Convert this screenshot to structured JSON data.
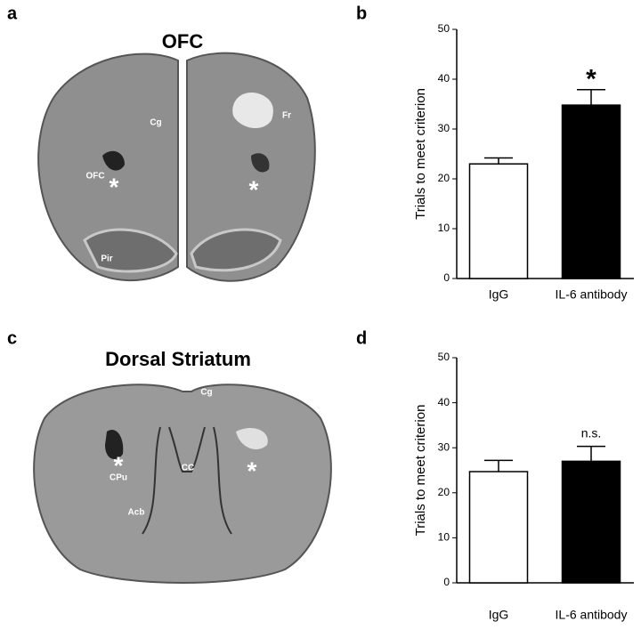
{
  "panels": [
    {
      "letter": "a",
      "title": "OFC",
      "labels": [
        "Cg",
        "Fr",
        "OFC",
        "Pir"
      ],
      "marker": "*"
    },
    {
      "letter": "b"
    },
    {
      "letter": "c",
      "title": "Dorsal Striatum",
      "labels": [
        "Cg",
        "CC",
        "CPu",
        "Acb"
      ],
      "marker": "*"
    },
    {
      "letter": "d"
    }
  ],
  "chart_data": [
    {
      "type": "bar",
      "y_label": "Trials to meet criterion",
      "categories": [
        "IgG",
        "IL-6 antibody"
      ],
      "values": [
        23,
        34.8
      ],
      "errors": [
        1.2,
        3.1
      ],
      "colors": [
        "#ffffff",
        "#000000"
      ],
      "ylim": [
        0,
        50
      ],
      "yticks": [
        0,
        10,
        20,
        30,
        40,
        50
      ],
      "annotation": "*"
    },
    {
      "type": "bar",
      "y_label": "Trials to meet criterion",
      "categories": [
        "IgG",
        "IL-6 antibody"
      ],
      "values": [
        24.7,
        27
      ],
      "errors": [
        2.5,
        3.3
      ],
      "colors": [
        "#ffffff",
        "#000000"
      ],
      "ylim": [
        0,
        50
      ],
      "yticks": [
        0,
        10,
        20,
        30,
        40,
        50
      ],
      "annotation": "n.s."
    }
  ]
}
